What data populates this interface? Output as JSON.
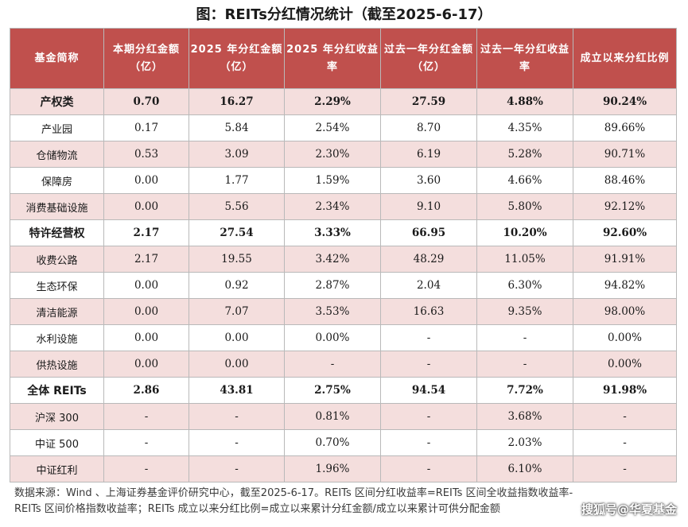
{
  "title": "图：REITs分红情况统计（截至2025-6-17）",
  "headers": [
    "基金简称",
    "本期分红金额（亿）",
    "2025 年分红金额（亿）",
    "2025 年分红收益率",
    "过去一年分红金额（亿）",
    "过去一年分红收益率",
    "成立以来分红比例"
  ],
  "rows": [
    {
      "name": "产权类",
      "c1": "0.70",
      "c2": "16.27",
      "c3": "2.29%",
      "c4": "27.59",
      "c5": "4.88%",
      "c6": "90.24%"
    },
    {
      "name": "产业园",
      "c1": "0.17",
      "c2": "5.84",
      "c3": "2.54%",
      "c4": "8.70",
      "c5": "4.35%",
      "c6": "89.66%"
    },
    {
      "name": "仓储物流",
      "c1": "0.53",
      "c2": "3.09",
      "c3": "2.30%",
      "c4": "6.19",
      "c5": "5.28%",
      "c6": "90.71%"
    },
    {
      "name": "保障房",
      "c1": "0.00",
      "c2": "1.77",
      "c3": "1.59%",
      "c4": "3.60",
      "c5": "4.66%",
      "c6": "88.46%"
    },
    {
      "name": "消费基础设施",
      "c1": "0.00",
      "c2": "5.56",
      "c3": "2.34%",
      "c4": "9.10",
      "c5": "5.80%",
      "c6": "92.12%"
    },
    {
      "name": "特许经营权",
      "c1": "2.17",
      "c2": "27.54",
      "c3": "3.33%",
      "c4": "66.95",
      "c5": "10.20%",
      "c6": "92.60%"
    },
    {
      "name": "收费公路",
      "c1": "2.17",
      "c2": "19.55",
      "c3": "3.42%",
      "c4": "48.29",
      "c5": "11.05%",
      "c6": "91.91%"
    },
    {
      "name": "生态环保",
      "c1": "0.00",
      "c2": "0.92",
      "c3": "2.87%",
      "c4": "2.04",
      "c5": "6.30%",
      "c6": "94.82%"
    },
    {
      "name": "清洁能源",
      "c1": "0.00",
      "c2": "7.07",
      "c3": "3.53%",
      "c4": "16.63",
      "c5": "9.35%",
      "c6": "98.00%"
    },
    {
      "name": "水利设施",
      "c1": "0.00",
      "c2": "0.00",
      "c3": "0.00%",
      "c4": "-",
      "c5": "-",
      "c6": "0.00%"
    },
    {
      "name": "供热设施",
      "c1": "0.00",
      "c2": "0.00",
      "c3": "-",
      "c4": "-",
      "c5": "-",
      "c6": "0.00%"
    },
    {
      "name": "全体 REITs",
      "c1": "2.86",
      "c2": "43.81",
      "c3": "2.75%",
      "c4": "94.54",
      "c5": "7.72%",
      "c6": "91.98%"
    },
    {
      "name": "沪深 300",
      "c1": "-",
      "c2": "-",
      "c3": "0.81%",
      "c4": "-",
      "c5": "3.68%",
      "c6": "-"
    },
    {
      "name": "中证 500",
      "c1": "-",
      "c2": "-",
      "c3": "0.70%",
      "c4": "-",
      "c5": "2.03%",
      "c6": "-"
    },
    {
      "name": "中证红利",
      "c1": "-",
      "c2": "-",
      "c3": "1.96%",
      "c4": "-",
      "c5": "6.10%",
      "c6": "-"
    }
  ],
  "note_line1": "数据来源：Wind 、上海证券基金评价研究中心，截至2025-6-17。REITs 区间分红收益率=REITs 区间全收益指数收益率-",
  "note_line2": "REITs 区间价格指数收益率；REITs 成立以来分红比例=成立以来累计分红金额/成立以来累计可供分配金额",
  "watermark": "搜狐号@华夏基金"
}
